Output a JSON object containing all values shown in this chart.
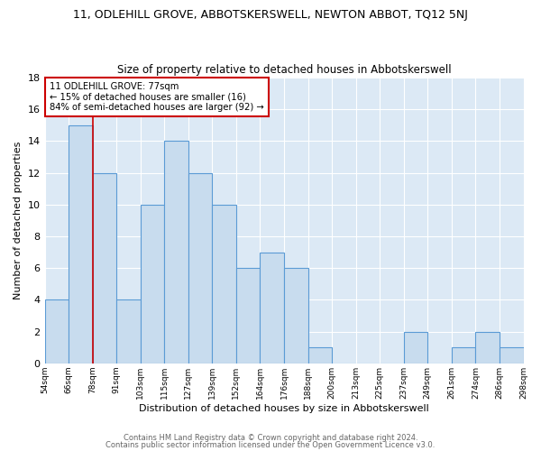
{
  "title": "11, ODLEHILL GROVE, ABBOTSKERSWELL, NEWTON ABBOT, TQ12 5NJ",
  "subtitle": "Size of property relative to detached houses in Abbotskerswell",
  "xlabel": "Distribution of detached houses by size in Abbotskerswell",
  "ylabel": "Number of detached properties",
  "bin_labels": [
    "54sqm",
    "66sqm",
    "78sqm",
    "91sqm",
    "103sqm",
    "115sqm",
    "127sqm",
    "139sqm",
    "152sqm",
    "164sqm",
    "176sqm",
    "188sqm",
    "200sqm",
    "213sqm",
    "225sqm",
    "237sqm",
    "249sqm",
    "261sqm",
    "274sqm",
    "286sqm",
    "298sqm"
  ],
  "counts": [
    4,
    15,
    12,
    4,
    10,
    14,
    12,
    10,
    6,
    7,
    6,
    1,
    0,
    0,
    0,
    2,
    0,
    1,
    2,
    1
  ],
  "bar_color": "#c8dcee",
  "bar_edge_color": "#5b9bd5",
  "marker_bin_index": 2,
  "marker_color": "#cc0000",
  "annotation_line1": "11 ODLEHILL GROVE: 77sqm",
  "annotation_line2": "← 15% of detached houses are smaller (16)",
  "annotation_line3": "84% of semi-detached houses are larger (92) →",
  "annotation_box_edge": "#cc0000",
  "ylim": [
    0,
    18
  ],
  "yticks": [
    0,
    2,
    4,
    6,
    8,
    10,
    12,
    14,
    16,
    18
  ],
  "ax_facecolor": "#dce9f5",
  "grid_color": "#ffffff",
  "footer1": "Contains HM Land Registry data © Crown copyright and database right 2024.",
  "footer2": "Contains public sector information licensed under the Open Government Licence v3.0.",
  "background_color": "#ffffff"
}
